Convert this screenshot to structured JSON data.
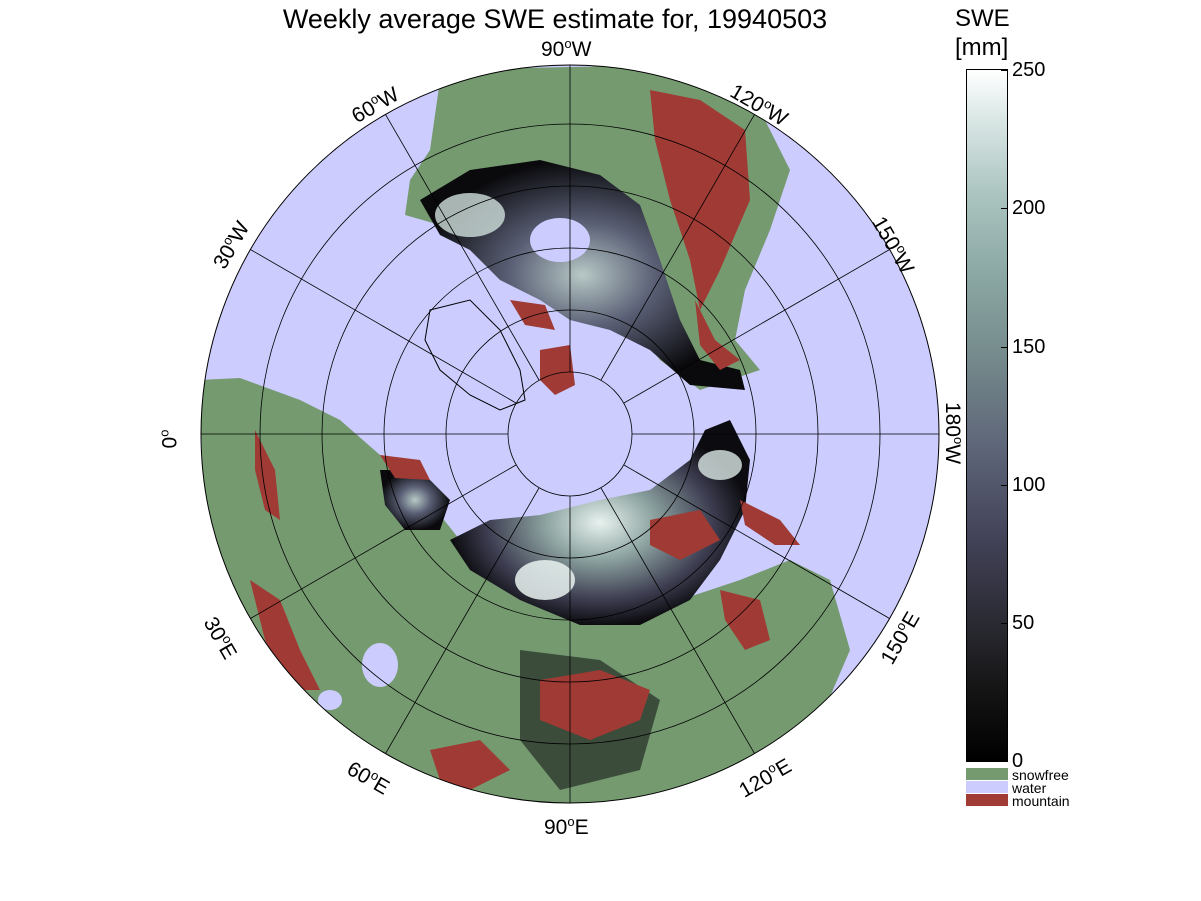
{
  "title": "Weekly average SWE estimate for, 19940503",
  "colorbar": {
    "title_line1": "SWE",
    "title_line2": "[mm]",
    "ticks": [
      "0",
      "50",
      "100",
      "150",
      "200",
      "250"
    ],
    "range": [
      0,
      250
    ]
  },
  "legend": [
    {
      "label": "snowfree",
      "color": "#759a70"
    },
    {
      "label": "water",
      "color": "#ccccff"
    },
    {
      "label": "mountain",
      "color": "#a03a35"
    }
  ],
  "longitude_labels": [
    {
      "deg": "90",
      "dir": "W"
    },
    {
      "deg": "120",
      "dir": "W"
    },
    {
      "deg": "150",
      "dir": "W"
    },
    {
      "deg": "180",
      "dir": "W"
    },
    {
      "deg": "150",
      "dir": "E"
    },
    {
      "deg": "120",
      "dir": "E"
    },
    {
      "deg": "90",
      "dir": "E"
    },
    {
      "deg": "60",
      "dir": "E"
    },
    {
      "deg": "30",
      "dir": "E"
    },
    {
      "deg": "0",
      "dir": ""
    },
    {
      "deg": "30",
      "dir": "W"
    },
    {
      "deg": "60",
      "dir": "W"
    }
  ],
  "colors": {
    "water": "#ccccff",
    "land": "#759a70",
    "mountain": "#a03a35"
  }
}
